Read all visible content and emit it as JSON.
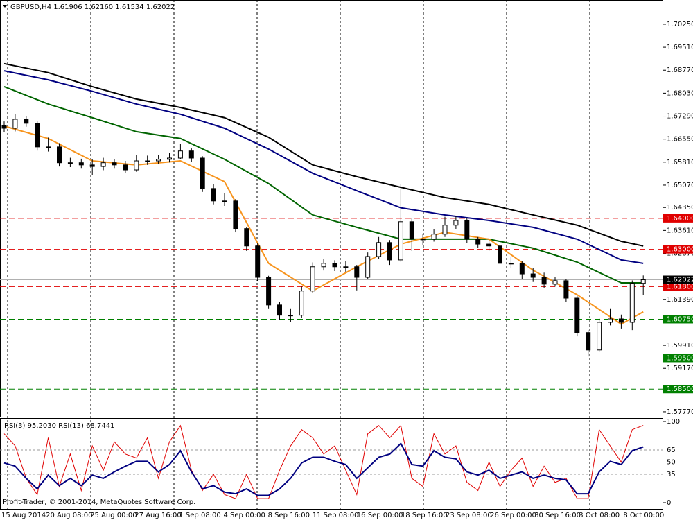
{
  "chart_data": [
    {
      "type": "candlestick",
      "title": "GBPUSD,H4  1.61906 1.62160 1.61534 1.62022",
      "open": [
        1.67,
        1.669,
        1.6719,
        1.6706,
        1.663,
        1.663,
        1.6579,
        1.6579,
        1.6572,
        1.6567,
        1.6579,
        1.6572,
        1.6556,
        1.6585,
        1.6585,
        1.659,
        1.6594,
        1.6617,
        1.6594,
        1.6496,
        1.6456,
        1.6456,
        1.6367,
        1.6311,
        1.621,
        1.6121,
        1.6088,
        1.6088,
        1.6166,
        1.6244,
        1.6255,
        1.6244,
        1.6244,
        1.621,
        1.6277,
        1.6322,
        1.6266,
        1.6389,
        1.6333,
        1.6333,
        1.6349,
        1.6378,
        1.6393,
        1.6333,
        1.6317,
        1.6311,
        1.6255,
        1.6255,
        1.6221,
        1.621,
        1.6188,
        1.6199,
        1.6143,
        1.6032,
        1.5976,
        1.6065,
        1.6076,
        1.6065,
        1.61906
      ],
      "high": [
        1.6712,
        1.6735,
        1.6728,
        1.6712,
        1.666,
        1.6642,
        1.6595,
        1.6592,
        1.659,
        1.6595,
        1.659,
        1.6585,
        1.6605,
        1.6602,
        1.6605,
        1.661,
        1.664,
        1.6625,
        1.66,
        1.651,
        1.648,
        1.6462,
        1.6372,
        1.632,
        1.6215,
        1.613,
        1.611,
        1.618,
        1.6258,
        1.6268,
        1.6265,
        1.6262,
        1.625,
        1.629,
        1.634,
        1.633,
        1.651,
        1.64,
        1.635,
        1.6365,
        1.6405,
        1.6408,
        1.64,
        1.634,
        1.633,
        1.6318,
        1.6275,
        1.6262,
        1.624,
        1.6225,
        1.6212,
        1.6205,
        1.615,
        1.604,
        1.6078,
        1.611,
        1.609,
        1.62,
        1.6216
      ],
      "low": [
        1.6678,
        1.668,
        1.6695,
        1.6618,
        1.6615,
        1.6567,
        1.6565,
        1.656,
        1.654,
        1.6555,
        1.656,
        1.6545,
        1.655,
        1.6572,
        1.6575,
        1.658,
        1.659,
        1.6582,
        1.6485,
        1.6445,
        1.644,
        1.6355,
        1.6295,
        1.6198,
        1.611,
        1.6072,
        1.6065,
        1.608,
        1.616,
        1.6232,
        1.623,
        1.6228,
        1.6168,
        1.6205,
        1.6268,
        1.625,
        1.626,
        1.6295,
        1.6315,
        1.6325,
        1.634,
        1.6365,
        1.632,
        1.6305,
        1.6295,
        1.624,
        1.624,
        1.6205,
        1.6195,
        1.6175,
        1.618,
        1.613,
        1.602,
        1.5955,
        1.597,
        1.6055,
        1.6045,
        1.604,
        1.61534
      ],
      "close": [
        1.669,
        1.6719,
        1.6706,
        1.663,
        1.663,
        1.6579,
        1.6579,
        1.6572,
        1.6567,
        1.6579,
        1.6572,
        1.6556,
        1.6585,
        1.6585,
        1.659,
        1.6594,
        1.6617,
        1.6594,
        1.6496,
        1.6456,
        1.6456,
        1.6367,
        1.6311,
        1.621,
        1.6121,
        1.6088,
        1.6088,
        1.6166,
        1.6244,
        1.6255,
        1.6244,
        1.6244,
        1.621,
        1.6277,
        1.6322,
        1.6266,
        1.6389,
        1.6333,
        1.6333,
        1.6349,
        1.6378,
        1.6393,
        1.6333,
        1.6317,
        1.6311,
        1.6255,
        1.6255,
        1.6221,
        1.621,
        1.6188,
        1.6199,
        1.6143,
        1.6032,
        1.5976,
        1.6065,
        1.6076,
        1.6065,
        1.61906,
        1.62022
      ],
      "xtick_labels": [
        "15 Aug 2014",
        "20 Aug 08:00",
        "25 Aug 00:00",
        "27 Aug 16:00",
        "1 Sep 08:00",
        "4 Sep 00:00",
        "8 Sep 16:00",
        "11 Sep 08:00",
        "16 Sep 00:00",
        "18 Sep 16:00",
        "23 Sep 08:00",
        "26 Sep 00:00",
        "30 Sep 16:00",
        "3 Oct 08:00",
        "8 Oct 00:00"
      ],
      "ylim": [
        1.5759,
        1.7103
      ],
      "yticks": [
        {
          "value": 1.7025,
          "label": "1.70250"
        },
        {
          "value": 1.6951,
          "label": "1.69510"
        },
        {
          "value": 1.6877,
          "label": "1.68770"
        },
        {
          "value": 1.6803,
          "label": "1.68030"
        },
        {
          "value": 1.6729,
          "label": "1.67290"
        },
        {
          "value": 1.6655,
          "label": "1.66550"
        },
        {
          "value": 1.6581,
          "label": "1.65810"
        },
        {
          "value": 1.6507,
          "label": "1.65070"
        },
        {
          "value": 1.6435,
          "label": "1.64350"
        },
        {
          "value": 1.6361,
          "label": "1.63610"
        },
        {
          "value": 1.6287,
          "label": "1.62870"
        },
        {
          "value": 1.6139,
          "label": "1.61390"
        },
        {
          "value": 1.5991,
          "label": "1.59910"
        },
        {
          "value": 1.5917,
          "label": "1.59170"
        },
        {
          "value": 1.5777,
          "label": "1.57770"
        }
      ],
      "moving_averages": [
        {
          "color": "#000000",
          "values": [
            1.6898,
            1.6869,
            1.6824,
            1.6784,
            1.6757,
            1.6724,
            1.6661,
            1.6572,
            1.6534,
            1.65,
            1.6467,
            1.6445,
            1.6411,
            1.6378,
            1.6326,
            1.6311
          ]
        },
        {
          "color": "#000080",
          "values": [
            1.6875,
            1.6846,
            1.6809,
            1.6768,
            1.6735,
            1.669,
            1.6623,
            1.6545,
            1.6489,
            1.6434,
            1.6411,
            1.6393,
            1.6371,
            1.6333,
            1.6266,
            1.6255
          ]
        },
        {
          "color": "#006400",
          "values": [
            1.6824,
            1.6768,
            1.6724,
            1.6679,
            1.6657,
            1.659,
            1.6512,
            1.6411,
            1.6371,
            1.6333,
            1.6333,
            1.6333,
            1.6304,
            1.6259,
            1.6192,
            1.6192
          ]
        },
        {
          "color": "#f7941d",
          "values": [
            1.6697,
            1.6657,
            1.6585,
            1.6572,
            1.6585,
            1.6518,
            1.6255,
            1.6166,
            1.6244,
            1.6317,
            1.6355,
            1.6333,
            1.6233,
            1.6154,
            1.6059,
            1.6099
          ]
        }
      ],
      "levels": [
        {
          "value": 1.64,
          "label": "1.64000",
          "color": "#e00000"
        },
        {
          "value": 1.63,
          "label": "1.63000",
          "color": "#e00000"
        },
        {
          "value": 1.618,
          "label": "1.61800",
          "color": "#e00000"
        },
        {
          "value": 1.6075,
          "label": "1.60750",
          "color": "#008000"
        },
        {
          "value": 1.595,
          "label": "1.59500",
          "color": "#008000"
        },
        {
          "value": 1.585,
          "label": "1.58500",
          "color": "#008000"
        }
      ],
      "current_price": {
        "value": 1.62022,
        "label": "1.62022"
      },
      "footer": "Profit-Trader, © 2001-2014, MetaQuotes Software Corp."
    },
    {
      "type": "line",
      "title": "RSI(3) 95.2030 RSI(13) 68.7441",
      "series": [
        {
          "color": "#e00000",
          "values": [
            85,
            70,
            30,
            10,
            80,
            20,
            60,
            15,
            70,
            40,
            75,
            60,
            55,
            80,
            30,
            75,
            95,
            40,
            15,
            35,
            10,
            5,
            35,
            5,
            5,
            40,
            70,
            90,
            80,
            60,
            70,
            40,
            10,
            85,
            95,
            80,
            95,
            30,
            20,
            85,
            60,
            70,
            25,
            15,
            50,
            20,
            40,
            55,
            20,
            45,
            25,
            30,
            5,
            5,
            90,
            70,
            50,
            90,
            95.203
          ]
        },
        {
          "color": "#000080",
          "values": [
            49,
            45,
            30,
            17,
            34,
            21,
            30,
            21,
            34,
            30,
            38,
            45,
            51,
            51,
            38,
            47,
            64,
            38,
            17,
            21,
            13,
            11,
            17,
            9,
            9,
            17,
            30,
            49,
            56,
            56,
            51,
            47,
            30,
            43,
            56,
            60,
            73,
            47,
            45,
            64,
            56,
            54,
            38,
            34,
            40,
            30,
            34,
            38,
            30,
            34,
            30,
            28,
            11,
            11,
            38,
            51,
            47,
            64,
            68.7441
          ]
        }
      ],
      "ylim": [
        0,
        100
      ],
      "yticks": [
        100,
        65,
        50,
        35,
        0
      ]
    }
  ]
}
